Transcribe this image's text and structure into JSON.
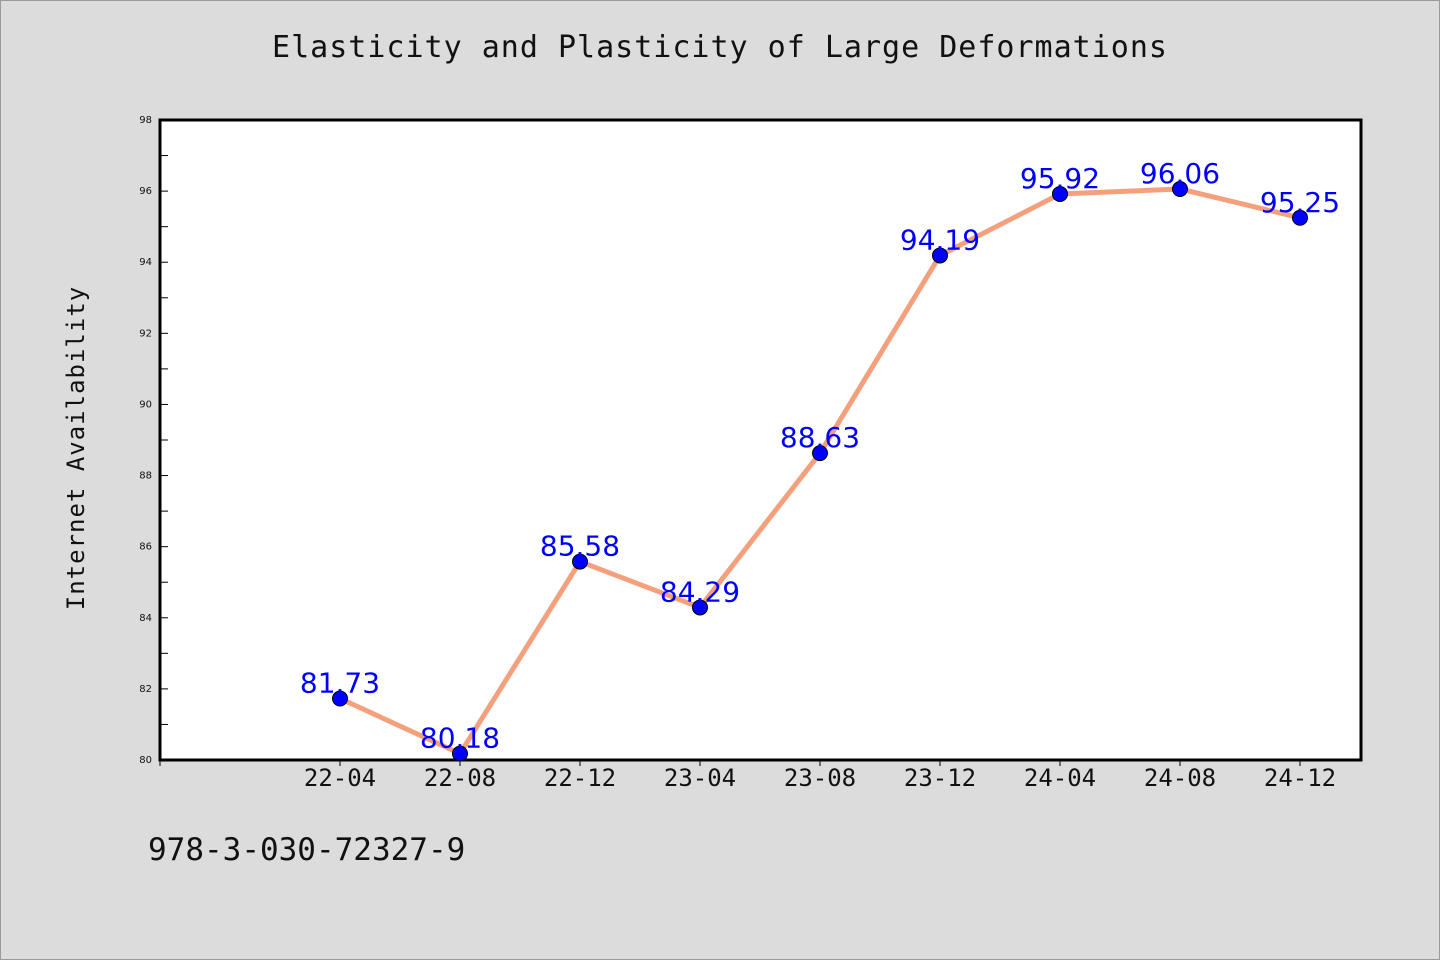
{
  "title": "Elasticity and Plasticity of Large Deformations",
  "footer_text": "978-3-030-72327-9",
  "colors": {
    "background": "#dcdcdc",
    "plot_background": "#ffffff",
    "line": "#f4a07c",
    "marker": "#0000ff",
    "data_label": "#0000ff",
    "axis": "#000000"
  },
  "chart_data": {
    "type": "line",
    "title": "Elasticity and Plasticity of Large Deformations",
    "xlabel": "",
    "ylabel": "Internet Availability",
    "categories": [
      "22-04",
      "22-08",
      "22-12",
      "23-04",
      "23-08",
      "23-12",
      "24-04",
      "24-08",
      "24-12"
    ],
    "series": [
      {
        "values": [
          81.73,
          80.18,
          85.58,
          84.29,
          88.63,
          94.19,
          95.92,
          96.06,
          95.25
        ],
        "labels": [
          "81.73",
          "80.18",
          "85.58",
          "84.29",
          "88.63",
          "94.19",
          "95.92",
          "96.06",
          "95.25"
        ]
      }
    ],
    "ylim": [
      80,
      98
    ],
    "yticks": [
      80,
      82,
      84,
      86,
      88,
      90,
      92,
      94,
      96,
      98
    ],
    "ytick_labels": [
      "80",
      "82",
      "84",
      "86",
      "88",
      "90",
      "92",
      "94",
      "96",
      "98"
    ],
    "grid": false,
    "legend": "none",
    "marker": "circle"
  }
}
